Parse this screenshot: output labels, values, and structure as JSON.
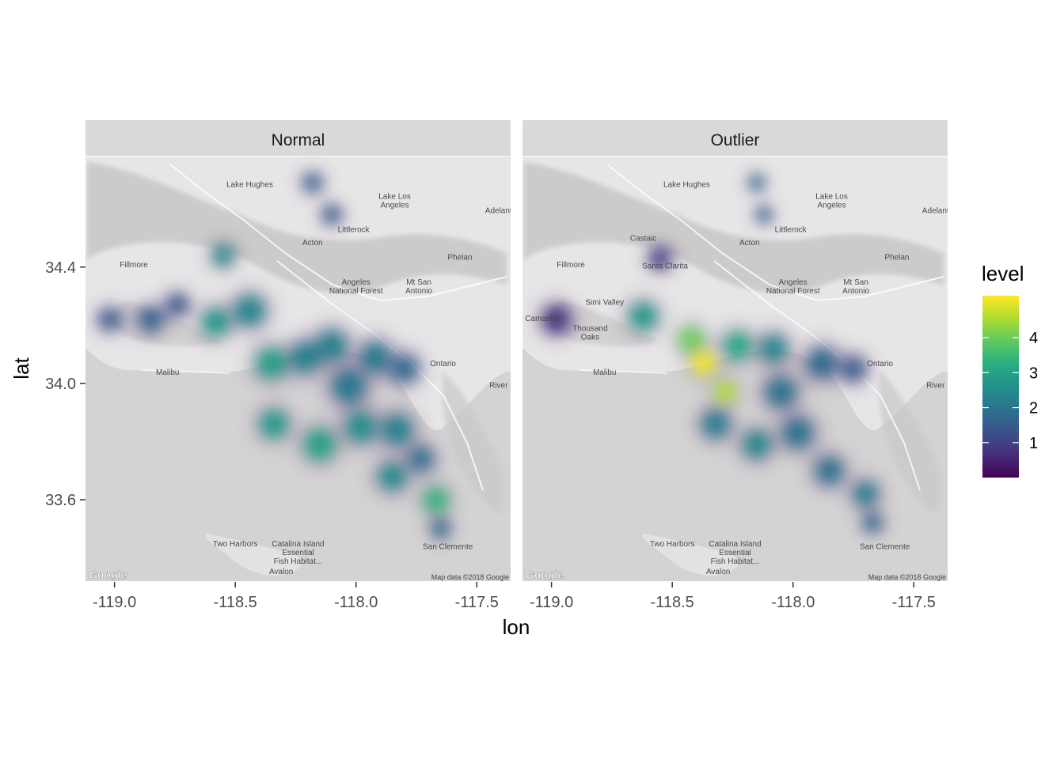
{
  "figure": {
    "xlabel": "lon",
    "ylabel": "lat",
    "legend_title": "level",
    "map_credit": "Map data ©2018 Google",
    "google_logo": "Google"
  },
  "map_labels": [
    {
      "text": "Lake Hughes",
      "lon": -118.44,
      "lat": 34.675
    },
    {
      "text": "Lake Los",
      "lon": -117.84,
      "lat": 34.635
    },
    {
      "text": "Angeles",
      "lon": -117.84,
      "lat": 34.605
    },
    {
      "text": "Adelant",
      "lon": -117.41,
      "lat": 34.585
    },
    {
      "text": "Littlerock",
      "lon": -118.01,
      "lat": 34.52
    },
    {
      "text": "Acton",
      "lon": -118.18,
      "lat": 34.475
    },
    {
      "text": "Phelan",
      "lon": -117.57,
      "lat": 34.425
    },
    {
      "text": "Fillmore",
      "lon": -118.92,
      "lat": 34.4
    },
    {
      "text": "Angeles",
      "lon": -118.0,
      "lat": 34.34
    },
    {
      "text": "National Forest",
      "lon": -118.0,
      "lat": 34.31
    },
    {
      "text": "Mt San",
      "lon": -117.74,
      "lat": 34.34
    },
    {
      "text": "Antonio",
      "lon": -117.74,
      "lat": 34.31
    },
    {
      "text": "Ontario",
      "lon": -117.64,
      "lat": 34.06
    },
    {
      "text": "Malibu",
      "lon": -118.78,
      "lat": 34.03
    },
    {
      "text": "River",
      "lon": -117.41,
      "lat": 33.985
    },
    {
      "text": "Two Harbors",
      "lon": -118.5,
      "lat": 33.44
    },
    {
      "text": "Catalina Island",
      "lon": -118.24,
      "lat": 33.44
    },
    {
      "text": "Essential",
      "lon": -118.24,
      "lat": 33.41
    },
    {
      "text": "Fish Habitat...",
      "lon": -118.24,
      "lat": 33.38
    },
    {
      "text": "Avalon",
      "lon": -118.31,
      "lat": 33.345
    },
    {
      "text": "San Clemente",
      "lon": -117.62,
      "lat": 33.43
    },
    {
      "text": "Santa Clarita",
      "lon": -118.53,
      "lat": 34.395,
      "panel": 1
    },
    {
      "text": "Simi Valley",
      "lon": -118.78,
      "lat": 34.27,
      "panel": 1
    },
    {
      "text": "Thousand",
      "lon": -118.84,
      "lat": 34.18,
      "panel": 1
    },
    {
      "text": "Oaks",
      "lon": -118.84,
      "lat": 34.15,
      "panel": 1
    },
    {
      "text": "Camarillo",
      "lon": -119.04,
      "lat": 34.215,
      "panel": 1
    },
    {
      "text": "Castaic",
      "lon": -118.62,
      "lat": 34.49,
      "panel": 1
    }
  ],
  "chart_data": {
    "type": "heatmap",
    "chart_kind": "faceted 2D density overlay on map",
    "xlabel": "lon",
    "ylabel": "lat",
    "xlim": [
      -119.12,
      -117.36
    ],
    "ylim": [
      33.32,
      34.78
    ],
    "x_ticks": [
      -119.0,
      -118.5,
      -118.0,
      -117.5
    ],
    "x_tick_labels": [
      "-119.0",
      "-118.5",
      "-118.0",
      "-117.5"
    ],
    "y_ticks": [
      33.6,
      34.0,
      34.4
    ],
    "y_tick_labels": [
      "33.6",
      "34.0",
      "34.4"
    ],
    "legend": {
      "title": "level",
      "ticks": [
        1,
        2,
        3,
        4
      ],
      "tick_labels": [
        "1",
        "2",
        "3",
        "4"
      ],
      "range": [
        0,
        5.2
      ],
      "placement": "right",
      "colormap": "viridis"
    },
    "grid": false,
    "panels": [
      {
        "title": "Normal",
        "blobs": [
          {
            "lon": -118.18,
            "lat": 34.69,
            "level": 1.5,
            "spread": 0.03
          },
          {
            "lon": -118.1,
            "lat": 34.58,
            "level": 1.4,
            "spread": 0.03
          },
          {
            "lon": -118.55,
            "lat": 34.44,
            "level": 2.3,
            "spread": 0.035
          },
          {
            "lon": -119.02,
            "lat": 34.22,
            "level": 1.4,
            "spread": 0.035
          },
          {
            "lon": -118.85,
            "lat": 34.22,
            "level": 1.5,
            "spread": 0.04
          },
          {
            "lon": -118.74,
            "lat": 34.27,
            "level": 1.3,
            "spread": 0.035
          },
          {
            "lon": -118.58,
            "lat": 34.21,
            "level": 2.6,
            "spread": 0.045
          },
          {
            "lon": -118.44,
            "lat": 34.25,
            "level": 2.2,
            "spread": 0.05
          },
          {
            "lon": -118.35,
            "lat": 34.07,
            "level": 2.7,
            "spread": 0.05
          },
          {
            "lon": -118.21,
            "lat": 34.09,
            "level": 2.1,
            "spread": 0.05
          },
          {
            "lon": -118.1,
            "lat": 34.13,
            "level": 2.1,
            "spread": 0.05
          },
          {
            "lon": -117.92,
            "lat": 34.09,
            "level": 1.9,
            "spread": 0.05
          },
          {
            "lon": -117.8,
            "lat": 34.05,
            "level": 1.6,
            "spread": 0.045
          },
          {
            "lon": -118.03,
            "lat": 33.99,
            "level": 1.9,
            "spread": 0.055
          },
          {
            "lon": -118.34,
            "lat": 33.86,
            "level": 2.6,
            "spread": 0.045
          },
          {
            "lon": -118.15,
            "lat": 33.79,
            "level": 2.8,
            "spread": 0.05
          },
          {
            "lon": -117.98,
            "lat": 33.85,
            "level": 2.4,
            "spread": 0.05
          },
          {
            "lon": -117.83,
            "lat": 33.84,
            "level": 2.1,
            "spread": 0.05
          },
          {
            "lon": -117.85,
            "lat": 33.68,
            "level": 2.3,
            "spread": 0.045
          },
          {
            "lon": -117.73,
            "lat": 33.74,
            "level": 1.8,
            "spread": 0.04
          },
          {
            "lon": -117.67,
            "lat": 33.6,
            "level": 3.2,
            "spread": 0.04
          },
          {
            "lon": -117.65,
            "lat": 33.5,
            "level": 1.7,
            "spread": 0.03
          }
        ]
      },
      {
        "title": "Outlier",
        "blobs": [
          {
            "lon": -118.15,
            "lat": 34.69,
            "level": 1.7,
            "spread": 0.025
          },
          {
            "lon": -118.12,
            "lat": 34.58,
            "level": 1.6,
            "spread": 0.025
          },
          {
            "lon": -118.55,
            "lat": 34.43,
            "level": 0.9,
            "spread": 0.035
          },
          {
            "lon": -118.98,
            "lat": 34.22,
            "level": 0.7,
            "spread": 0.045
          },
          {
            "lon": -118.62,
            "lat": 34.23,
            "level": 2.6,
            "spread": 0.045
          },
          {
            "lon": -118.42,
            "lat": 34.15,
            "level": 3.9,
            "spread": 0.04
          },
          {
            "lon": -118.37,
            "lat": 34.07,
            "level": 5.0,
            "spread": 0.04
          },
          {
            "lon": -118.28,
            "lat": 33.97,
            "level": 4.5,
            "spread": 0.035
          },
          {
            "lon": -118.23,
            "lat": 34.13,
            "level": 2.9,
            "spread": 0.045
          },
          {
            "lon": -118.08,
            "lat": 34.12,
            "level": 2.2,
            "spread": 0.045
          },
          {
            "lon": -117.88,
            "lat": 34.07,
            "level": 1.6,
            "spread": 0.05
          },
          {
            "lon": -117.75,
            "lat": 34.05,
            "level": 1.4,
            "spread": 0.04
          },
          {
            "lon": -118.05,
            "lat": 33.97,
            "level": 1.8,
            "spread": 0.05
          },
          {
            "lon": -118.32,
            "lat": 33.86,
            "level": 2.0,
            "spread": 0.045
          },
          {
            "lon": -118.15,
            "lat": 33.79,
            "level": 2.2,
            "spread": 0.045
          },
          {
            "lon": -117.98,
            "lat": 33.83,
            "level": 1.8,
            "spread": 0.05
          },
          {
            "lon": -117.85,
            "lat": 33.7,
            "level": 1.8,
            "spread": 0.045
          },
          {
            "lon": -117.7,
            "lat": 33.62,
            "level": 2.0,
            "spread": 0.04
          },
          {
            "lon": -117.67,
            "lat": 33.52,
            "level": 1.6,
            "spread": 0.03
          }
        ]
      }
    ]
  }
}
